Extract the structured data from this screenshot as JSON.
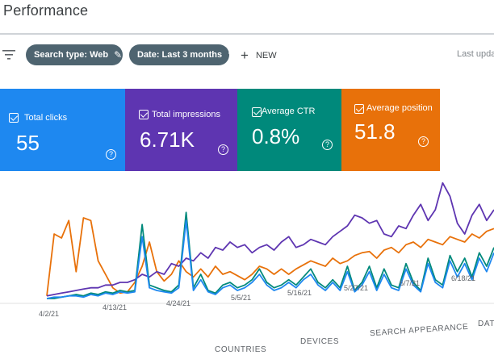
{
  "page": {
    "title": "Performance"
  },
  "toolbar": {
    "filter_icon": "filter-icon",
    "chips": [
      {
        "label": "Search type: Web",
        "icon": "pencil-icon"
      },
      {
        "label": "Date: Last 3 months",
        "icon": "pencil-icon"
      }
    ],
    "new_label": "NEW",
    "last_updated": "Last upda"
  },
  "cards": [
    {
      "label": "Total clicks",
      "value": "55",
      "color": "#1e88f0"
    },
    {
      "label": "Total impressions",
      "value": "6.71K",
      "color": "#5e35b1"
    },
    {
      "label": "Average CTR",
      "value": "0.8%",
      "color": "#00897b"
    },
    {
      "label": "Average position",
      "value": "51.8",
      "color": "#e8710a"
    }
  ],
  "help_glyph": "?",
  "chart_data": {
    "type": "line",
    "x_tick_labels": [
      "4/2/21",
      "4/13/21",
      "4/24/21",
      "5/5/21",
      "5/16/21",
      "5/27/21",
      "6/7/21",
      "6/18/21"
    ],
    "series": [
      {
        "color": "#e8710a",
        "values": [
          2,
          48,
          45,
          58,
          20,
          60,
          58,
          28,
          18,
          8,
          4,
          5,
          12,
          24,
          42,
          20,
          13,
          18,
          28,
          20,
          16,
          22,
          16,
          24,
          18,
          20,
          17,
          14,
          18,
          24,
          22,
          18,
          22,
          18,
          22,
          25,
          28,
          26,
          24,
          30,
          26,
          28,
          32,
          34,
          35,
          30,
          36,
          38,
          34,
          40,
          42,
          38,
          44,
          42,
          40,
          46,
          44,
          42,
          48,
          45,
          50,
          52
        ]
      },
      {
        "color": "#5e35b1",
        "values": [
          2,
          3,
          4,
          5,
          6,
          7,
          8,
          8,
          10,
          10,
          12,
          12,
          14,
          18,
          16,
          20,
          18,
          26,
          24,
          30,
          28,
          34,
          30,
          38,
          36,
          42,
          38,
          40,
          34,
          38,
          40,
          36,
          42,
          46,
          38,
          40,
          44,
          42,
          40,
          46,
          50,
          54,
          62,
          60,
          56,
          58,
          48,
          46,
          54,
          52,
          62,
          70,
          58,
          66,
          86,
          76,
          56,
          48,
          62,
          70,
          58,
          66
        ]
      },
      {
        "color": "#00897b",
        "values": [
          0,
          0,
          1,
          2,
          3,
          2,
          4,
          3,
          5,
          4,
          6,
          5,
          6,
          55,
          10,
          8,
          6,
          5,
          10,
          64,
          8,
          18,
          6,
          4,
          10,
          12,
          8,
          10,
          14,
          22,
          12,
          8,
          10,
          14,
          10,
          16,
          22,
          12,
          8,
          14,
          8,
          24,
          6,
          12,
          24,
          8,
          22,
          10,
          8,
          26,
          12,
          6,
          30,
          14,
          10,
          32,
          20,
          30,
          16,
          34,
          24,
          38
        ]
      },
      {
        "color": "#1e88f0",
        "values": [
          0,
          1,
          1,
          2,
          2,
          1,
          3,
          2,
          4,
          3,
          5,
          4,
          5,
          46,
          8,
          6,
          5,
          4,
          8,
          58,
          6,
          14,
          5,
          3,
          8,
          10,
          6,
          8,
          12,
          18,
          10,
          6,
          8,
          12,
          8,
          14,
          18,
          10,
          6,
          12,
          6,
          20,
          5,
          10,
          20,
          6,
          18,
          8,
          6,
          22,
          10,
          5,
          26,
          12,
          8,
          28,
          16,
          26,
          14,
          30,
          20,
          34
        ]
      }
    ],
    "ylim": [
      0,
      90
    ]
  },
  "tabs": [
    "COUNTRIES",
    "DEVICES",
    "SEARCH APPEARANCE",
    "DATES"
  ]
}
